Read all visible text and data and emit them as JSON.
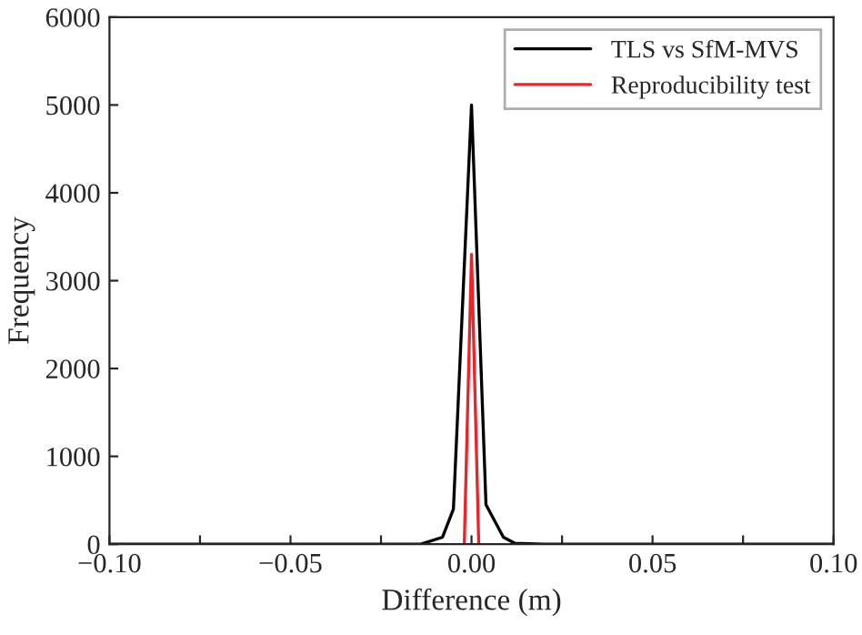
{
  "chart_data": {
    "type": "line",
    "xlabel": "Difference (m)",
    "ylabel": "Frequency",
    "series": [
      {
        "name": "TLS vs SfM-MVS",
        "color": "#000000",
        "x": [
          -0.1,
          -0.05,
          -0.02,
          -0.014,
          -0.008,
          -0.005,
          0.0,
          0.004,
          0.0088,
          0.012,
          0.02,
          0.05,
          0.1
        ],
        "values": [
          0,
          0,
          0,
          0,
          80,
          400,
          5000,
          450,
          80,
          10,
          0,
          0,
          0
        ]
      },
      {
        "name": "Reproducibility test",
        "color": "#e8262a",
        "x": [
          -0.002,
          0.0,
          0.002
        ],
        "values": [
          0,
          3300,
          0
        ]
      }
    ],
    "xlim": [
      -0.1,
      0.1
    ],
    "xticks": [
      {
        "value": -0.1,
        "label": "−0.10"
      },
      {
        "value": -0.075,
        "label": null
      },
      {
        "value": -0.05,
        "label": "−0.05"
      },
      {
        "value": -0.025,
        "label": null
      },
      {
        "value": 0.0,
        "label": "0.00"
      },
      {
        "value": 0.025,
        "label": null
      },
      {
        "value": 0.05,
        "label": "0.05"
      },
      {
        "value": 0.075,
        "label": null
      },
      {
        "value": 0.1,
        "label": "0.10"
      }
    ],
    "ylim": [
      0,
      6000
    ],
    "yticks": [
      0,
      1000,
      2000,
      3000,
      4000,
      5000,
      6000
    ],
    "legend": "top right",
    "grid": false,
    "marker": "none",
    "line_style": "solid"
  }
}
